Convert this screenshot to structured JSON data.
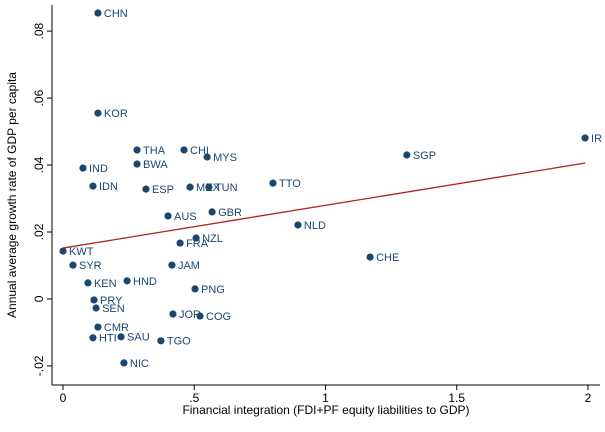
{
  "chart_data": {
    "type": "scatter",
    "x_label": "Financial integration (FDI+PF equity liabilities to GDP)",
    "y_label": "Annual average growth rate of GDP  per capita",
    "xlim": [
      -0.042,
      2.046
    ],
    "ylim": [
      -0.0257,
      0.0878
    ],
    "xticks": [
      0,
      {
        "value": 0.5,
        "label": ".5"
      },
      1,
      1.5,
      2
    ],
    "yticks": [
      {
        "value": -0.02,
        "label": "-.02"
      },
      0,
      {
        "value": 0.02,
        "label": ".02"
      },
      {
        "value": 0.04,
        "label": ".04"
      },
      {
        "value": 0.06,
        "label": ".06"
      },
      {
        "value": 0.08,
        "label": ".08"
      }
    ],
    "series": [
      {
        "color": "#1a476f",
        "labels": [
          "CHN",
          "KOR",
          "THA",
          "CHI",
          "MYS",
          "BWA",
          "SGP",
          "IR",
          "IND",
          "IDN",
          "ESP",
          "MEX",
          "TUN",
          "TTO",
          "GBR",
          "AUS",
          "NLD",
          "CHE",
          "NZL",
          "FRA",
          "JAM",
          "PNG",
          "JOR",
          "COG",
          "TGO",
          "NIC",
          "SAU",
          "HTI",
          "PRY",
          "SEN",
          "KWT",
          "SYR",
          "KEN",
          "HND",
          "CMR"
        ],
        "x": [
          0.133,
          0.133,
          0.282,
          0.461,
          0.549,
          0.282,
          1.31,
          1.989,
          0.076,
          0.114,
          0.316,
          0.484,
          0.556,
          0.8,
          0.568,
          0.4,
          0.895,
          1.17,
          0.507,
          0.446,
          0.415,
          0.503,
          0.419,
          0.522,
          0.373,
          0.232,
          0.221,
          0.114,
          0.118,
          0.126,
          0.0,
          0.038,
          0.095,
          0.244,
          0.133
        ],
        "values": [
          0.0854,
          0.0555,
          0.0445,
          0.0445,
          0.0424,
          0.0403,
          0.043,
          0.0481,
          0.0391,
          0.0337,
          0.0328,
          0.0334,
          0.0334,
          0.0346,
          0.026,
          0.0248,
          0.0221,
          0.0125,
          0.0182,
          0.0167,
          0.0101,
          0.003,
          -0.0045,
          -0.0051,
          -0.0125,
          -0.0191,
          -0.0113,
          -0.0116,
          -0.0003,
          -0.0027,
          0.0143,
          0.0101,
          0.0048,
          0.0054,
          -0.0084
        ]
      }
    ],
    "fit_line": {
      "color": "#b22222",
      "x": [
        0,
        1.99
      ],
      "values": [
        0.0152,
        0.0406
      ]
    }
  }
}
